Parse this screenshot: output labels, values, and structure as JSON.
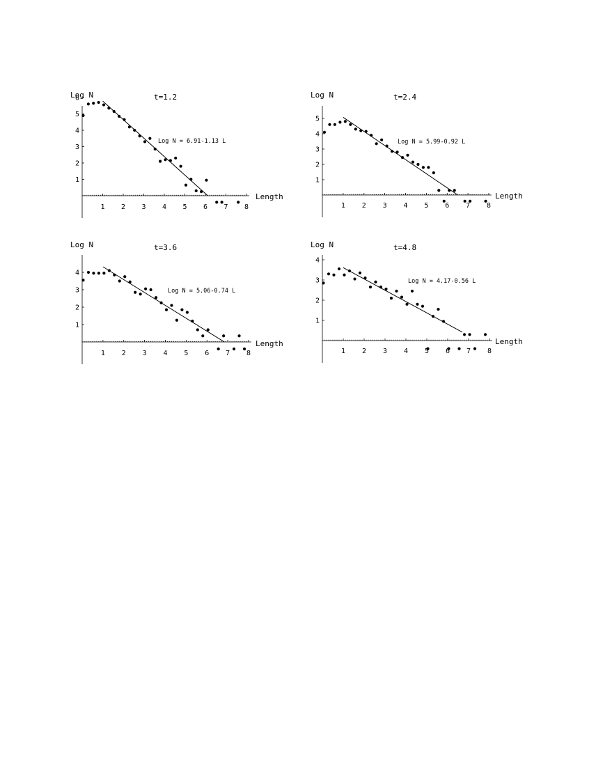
{
  "chart_data": [
    {
      "type": "scatter",
      "title": "t=1.2",
      "ylabel": "Log N",
      "xlabel": "Length",
      "x_ticks": [
        1,
        2,
        3,
        4,
        5,
        6,
        7,
        8
      ],
      "y_ticks": [
        1,
        2,
        3,
        4,
        5,
        6
      ],
      "fit_label": "Log N = 6.91-1.13 L",
      "fit": {
        "intercept": 6.91,
        "slope": -1.13,
        "x_start": 1.0,
        "x_end": 6.12
      },
      "xlim": [
        0,
        8
      ],
      "ylim": [
        -0.5,
        6.5
      ],
      "points": [
        [
          0.05,
          4.9
        ],
        [
          0.3,
          5.6
        ],
        [
          0.55,
          5.65
        ],
        [
          0.8,
          5.7
        ],
        [
          1.05,
          5.55
        ],
        [
          1.3,
          5.35
        ],
        [
          1.55,
          5.15
        ],
        [
          1.8,
          4.85
        ],
        [
          2.05,
          4.65
        ],
        [
          2.3,
          4.2
        ],
        [
          2.55,
          4.0
        ],
        [
          2.8,
          3.65
        ],
        [
          3.05,
          3.3
        ],
        [
          3.3,
          3.5
        ],
        [
          3.55,
          2.85
        ],
        [
          3.8,
          2.1
        ],
        [
          4.05,
          2.2
        ],
        [
          4.3,
          2.15
        ],
        [
          4.55,
          2.3
        ],
        [
          4.8,
          1.8
        ],
        [
          5.05,
          0.65
        ],
        [
          5.3,
          1.0
        ],
        [
          5.55,
          0.3
        ],
        [
          5.8,
          0.25
        ],
        [
          6.05,
          0.95
        ],
        [
          6.55,
          -0.4
        ],
        [
          6.8,
          -0.4
        ],
        [
          7.6,
          -0.4
        ]
      ]
    },
    {
      "type": "scatter",
      "title": "t=2.4",
      "ylabel": "Log N",
      "xlabel": "Length",
      "x_ticks": [
        1,
        2,
        3,
        4,
        5,
        6,
        7,
        8
      ],
      "y_ticks": [
        1,
        2,
        3,
        4,
        5
      ],
      "fit_label": "Log N = 5.99-0.92 L",
      "fit": {
        "intercept": 5.99,
        "slope": -0.92,
        "x_start": 1.0,
        "x_end": 6.51
      },
      "xlim": [
        0,
        8
      ],
      "ylim": [
        -0.5,
        5.6
      ],
      "points": [
        [
          0.1,
          4.1
        ],
        [
          0.35,
          4.6
        ],
        [
          0.6,
          4.6
        ],
        [
          0.85,
          4.75
        ],
        [
          1.1,
          4.8
        ],
        [
          1.35,
          4.6
        ],
        [
          1.6,
          4.3
        ],
        [
          1.85,
          4.2
        ],
        [
          2.1,
          4.15
        ],
        [
          2.35,
          3.9
        ],
        [
          2.6,
          3.35
        ],
        [
          2.85,
          3.6
        ],
        [
          3.1,
          3.2
        ],
        [
          3.35,
          2.85
        ],
        [
          3.6,
          2.8
        ],
        [
          3.85,
          2.45
        ],
        [
          4.1,
          2.6
        ],
        [
          4.35,
          2.15
        ],
        [
          4.6,
          2.0
        ],
        [
          4.85,
          1.8
        ],
        [
          5.1,
          1.8
        ],
        [
          5.35,
          1.45
        ],
        [
          5.6,
          0.3
        ],
        [
          5.85,
          -0.4
        ],
        [
          6.1,
          0.3
        ],
        [
          6.35,
          0.3
        ],
        [
          6.85,
          -0.4
        ],
        [
          7.1,
          -0.4
        ],
        [
          7.85,
          -0.4
        ]
      ]
    },
    {
      "type": "scatter",
      "title": "t=3.6",
      "ylabel": "Log N",
      "xlabel": "Length",
      "x_ticks": [
        1,
        2,
        3,
        4,
        5,
        6,
        7,
        8
      ],
      "y_ticks": [
        1,
        2,
        3,
        4
      ],
      "fit_label": "Log N = 5.06-0.74 L",
      "fit": {
        "intercept": 5.06,
        "slope": -0.74,
        "x_start": 1.0,
        "x_end": 6.84
      },
      "xlim": [
        0,
        8
      ],
      "ylim": [
        -0.5,
        4.8
      ],
      "points": [
        [
          0.05,
          3.55
        ],
        [
          0.3,
          4.0
        ],
        [
          0.55,
          3.95
        ],
        [
          0.8,
          3.95
        ],
        [
          1.05,
          3.95
        ],
        [
          1.3,
          4.1
        ],
        [
          1.55,
          3.85
        ],
        [
          1.8,
          3.5
        ],
        [
          2.05,
          3.75
        ],
        [
          2.3,
          3.45
        ],
        [
          2.55,
          2.85
        ],
        [
          2.8,
          2.75
        ],
        [
          3.05,
          3.05
        ],
        [
          3.3,
          3.0
        ],
        [
          3.55,
          2.55
        ],
        [
          3.8,
          2.25
        ],
        [
          4.05,
          1.85
        ],
        [
          4.3,
          2.1
        ],
        [
          4.55,
          1.25
        ],
        [
          4.8,
          1.85
        ],
        [
          5.05,
          1.7
        ],
        [
          5.3,
          1.2
        ],
        [
          5.55,
          0.7
        ],
        [
          5.8,
          0.35
        ],
        [
          6.05,
          0.7
        ],
        [
          6.55,
          -0.4
        ],
        [
          6.8,
          0.35
        ],
        [
          7.3,
          -0.4
        ],
        [
          7.55,
          0.35
        ],
        [
          7.8,
          -0.4
        ]
      ]
    },
    {
      "type": "scatter",
      "title": "t=4.8",
      "ylabel": "Log N",
      "xlabel": "Length",
      "x_ticks": [
        1,
        2,
        3,
        4,
        5,
        6,
        7,
        8
      ],
      "y_ticks": [
        1,
        2,
        3,
        4
      ],
      "fit_label": "Log N = 4.17-0.56 L",
      "fit": {
        "intercept": 4.17,
        "slope": -0.56,
        "x_start": 1.0,
        "x_end": 6.7
      },
      "xlim": [
        0,
        8
      ],
      "ylim": [
        -0.5,
        4.2
      ],
      "points": [
        [
          0.05,
          2.85
        ],
        [
          0.3,
          3.3
        ],
        [
          0.55,
          3.25
        ],
        [
          0.8,
          3.55
        ],
        [
          1.05,
          3.25
        ],
        [
          1.3,
          3.45
        ],
        [
          1.55,
          3.05
        ],
        [
          1.8,
          3.35
        ],
        [
          2.05,
          3.1
        ],
        [
          2.3,
          2.65
        ],
        [
          2.55,
          2.9
        ],
        [
          2.8,
          2.65
        ],
        [
          3.05,
          2.55
        ],
        [
          3.3,
          2.1
        ],
        [
          3.55,
          2.45
        ],
        [
          3.8,
          2.15
        ],
        [
          4.05,
          1.8
        ],
        [
          4.3,
          2.45
        ],
        [
          4.55,
          1.8
        ],
        [
          4.8,
          1.7
        ],
        [
          5.05,
          -0.4
        ],
        [
          5.3,
          1.2
        ],
        [
          5.55,
          1.55
        ],
        [
          5.8,
          0.95
        ],
        [
          6.05,
          -0.4
        ],
        [
          6.55,
          -0.4
        ],
        [
          6.8,
          0.3
        ],
        [
          7.05,
          0.3
        ],
        [
          7.3,
          -0.4
        ],
        [
          7.8,
          0.3
        ]
      ]
    }
  ]
}
